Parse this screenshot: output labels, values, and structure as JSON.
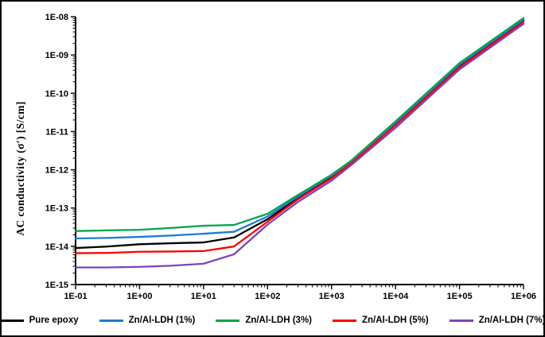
{
  "figure": {
    "background": "#ffffff",
    "border_color": "#000000",
    "axis_color": "#000000",
    "text_color": "#000000"
  },
  "chart_data": {
    "type": "line",
    "title": "",
    "xlabel": "",
    "ylabel": "AC conductivity (σ′) [S/cm]",
    "x_scale": "log",
    "y_scale": "log",
    "xlim": [
      0.1,
      1000000
    ],
    "ylim": [
      1e-15,
      1e-08
    ],
    "grid": false,
    "legend_position": "bottom",
    "x_ticks": [
      0.1,
      1,
      10,
      100,
      1000,
      10000,
      100000,
      1000000
    ],
    "x_tick_labels": [
      "1E-01",
      "1E+00",
      "1E+01",
      "1E+02",
      "1E+03",
      "1E+04",
      "1E+05",
      "1E+06"
    ],
    "y_ticks": [
      1e-08,
      1e-09,
      1e-10,
      1e-11,
      1e-12,
      1e-13,
      1e-14,
      1e-15
    ],
    "y_tick_labels": [
      "1E-08",
      "1E-09",
      "1E-10",
      "1E-11",
      "1E-12",
      "1E-13",
      "1E-14",
      "1E-15"
    ],
    "x": [
      0.1,
      0.3,
      1,
      3,
      10,
      30,
      100,
      300,
      1000,
      2000,
      10000,
      100000,
      1000000
    ],
    "series": [
      {
        "name": "Pure epoxy",
        "color": "#000000",
        "values": [
          9e-15,
          9.8e-15,
          1.13e-14,
          1.2e-14,
          1.26e-14,
          1.7e-14,
          5.1e-14,
          1.85e-13,
          6.5e-13,
          1.5e-12,
          1.57e-11,
          5.15e-10,
          7.9e-09
        ]
      },
      {
        "name": "Zn/Al-LDH (1%)",
        "color": "#1E7CD0",
        "values": [
          1.6e-14,
          1.65e-14,
          1.76e-14,
          1.9e-14,
          2.13e-14,
          2.4e-14,
          6e-14,
          2e-13,
          7e-13,
          1.6e-12,
          1.69e-11,
          5.6e-10,
          8.45e-09
        ]
      },
      {
        "name": "Zn/Al-LDH (3%)",
        "color": "#00A550",
        "values": [
          2.5e-14,
          2.6e-14,
          2.7e-14,
          3e-14,
          3.44e-14,
          3.6e-14,
          7.05e-14,
          2.2e-13,
          7.4e-13,
          1.7e-12,
          1.84e-11,
          6.15e-10,
          9.2e-09
        ]
      },
      {
        "name": "Zn/Al-LDH (5%)",
        "color": "#FE0000",
        "values": [
          6.6e-15,
          6.7e-15,
          7.2e-15,
          7.3e-15,
          7.5e-15,
          9.9e-15,
          4.4e-14,
          1.7e-13,
          6e-13,
          1.45e-12,
          1.46e-11,
          4.75e-10,
          7.3e-09
        ]
      },
      {
        "name": "Zn/Al-LDH (7%)",
        "color": "#7C43C0",
        "values": [
          2.8e-15,
          2.8e-15,
          2.9e-15,
          3.1e-15,
          3.5e-15,
          6.2e-15,
          3.7e-14,
          1.45e-13,
          5.2e-13,
          1.3e-12,
          1.25e-11,
          4.2e-10,
          6.5e-09
        ]
      }
    ]
  }
}
